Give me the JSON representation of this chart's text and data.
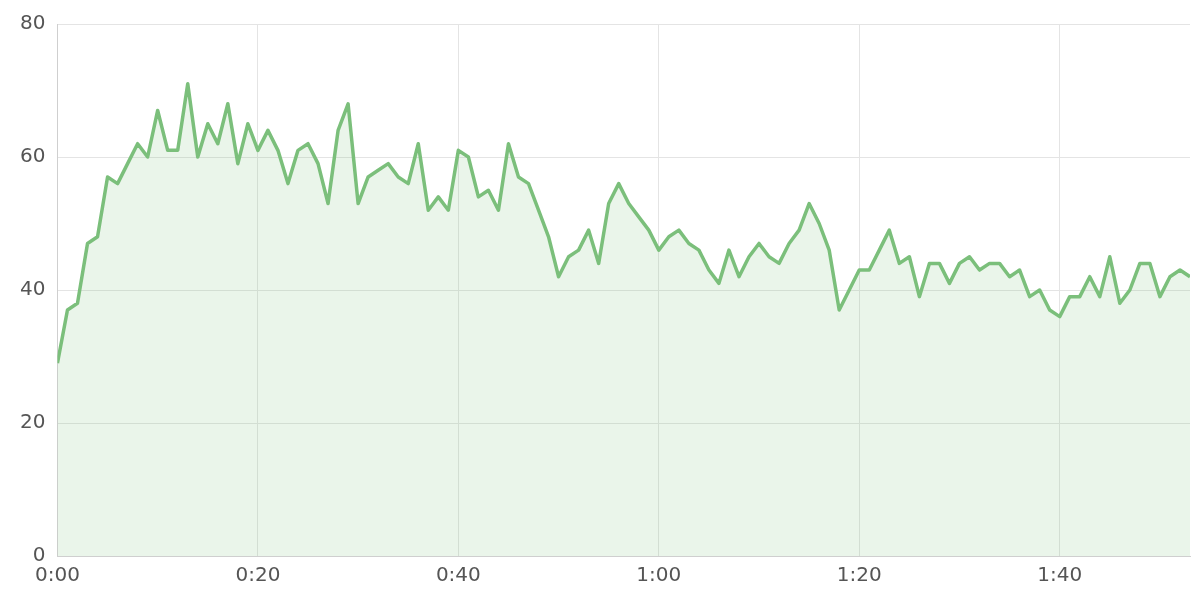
{
  "chart_data": {
    "type": "area",
    "color": "#7bbf7b",
    "x": [
      0,
      1,
      2,
      3,
      4,
      5,
      6,
      7,
      8,
      9,
      10,
      11,
      12,
      13,
      14,
      15,
      16,
      17,
      18,
      19,
      20,
      21,
      22,
      23,
      24,
      25,
      26,
      27,
      28,
      29,
      30,
      31,
      32,
      33,
      34,
      35,
      36,
      37,
      38,
      39,
      40,
      41,
      42,
      43,
      44,
      45,
      46,
      47,
      48,
      49,
      50,
      51,
      52,
      53,
      54,
      55,
      56,
      57,
      58,
      59,
      60,
      61,
      62,
      63,
      64,
      65,
      66,
      67,
      68,
      69,
      70,
      71,
      72,
      73,
      74,
      75,
      76,
      77,
      78,
      79,
      80,
      81,
      82,
      83,
      84,
      85,
      86,
      87,
      88,
      89,
      90,
      91,
      92,
      93,
      94,
      95,
      96,
      97,
      98,
      99,
      100,
      101,
      102,
      103,
      104,
      105,
      106,
      107,
      108,
      109,
      110,
      111,
      112,
      113
    ],
    "values": [
      29,
      37,
      38,
      47,
      48,
      57,
      56,
      59,
      62,
      60,
      67,
      61,
      61,
      71,
      60,
      65,
      62,
      68,
      59,
      65,
      61,
      64,
      61,
      56,
      61,
      62,
      59,
      53,
      64,
      68,
      53,
      57,
      58,
      59,
      57,
      56,
      62,
      52,
      54,
      52,
      61,
      60,
      54,
      55,
      52,
      62,
      57,
      56,
      52,
      48,
      42,
      45,
      46,
      49,
      44,
      53,
      56,
      53,
      51,
      49,
      46,
      48,
      49,
      47,
      46,
      43,
      41,
      46,
      42,
      45,
      47,
      45,
      44,
      47,
      49,
      53,
      50,
      46,
      37,
      40,
      43,
      43,
      46,
      49,
      44,
      45,
      39,
      44,
      44,
      41,
      44,
      45,
      43,
      44,
      44,
      42,
      43,
      39,
      40,
      37,
      36,
      39,
      39,
      42,
      39,
      45,
      38,
      40,
      44,
      44,
      39,
      42,
      43,
      42
    ],
    "xlim": [
      0,
      113
    ],
    "xticks": [
      {
        "value": 0,
        "label": "0:00"
      },
      {
        "value": 20,
        "label": "0:20"
      },
      {
        "value": 40,
        "label": "0:40"
      },
      {
        "value": 60,
        "label": "1:00"
      },
      {
        "value": 80,
        "label": "1:20"
      },
      {
        "value": 100,
        "label": "1:40"
      }
    ],
    "ylim": [
      0,
      80
    ],
    "yticks": [
      0,
      20,
      40,
      60,
      80
    ],
    "grid": true
  }
}
